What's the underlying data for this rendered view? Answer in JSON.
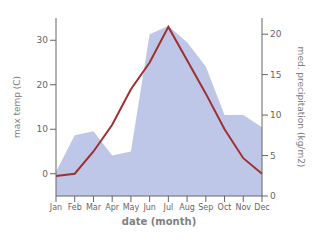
{
  "chart_data": {
    "type": "line",
    "x_label": "date (month)",
    "y_label": "max temp (C)",
    "y2_label": "med. precipitation (kg/m2)",
    "categories": [
      "Jan",
      "Feb",
      "Mar",
      "Apr",
      "May",
      "Jun",
      "Jul",
      "Aug",
      "Sep",
      "Oct",
      "Nov",
      "Dec"
    ],
    "series": [
      {
        "type": "area",
        "axis": "y2",
        "color": "#aab4e0",
        "values": [
          3.0,
          7.5,
          8.0,
          5.0,
          5.5,
          20.0,
          21.0,
          19.0,
          16.0,
          10.0,
          10.0,
          8.5
        ]
      },
      {
        "type": "line",
        "axis": "y",
        "color": "#a03030",
        "values": [
          -0.5,
          0.0,
          5.0,
          11.0,
          19.0,
          25.0,
          33.0,
          25.5,
          18.0,
          10.0,
          3.5,
          0.0
        ]
      }
    ],
    "ylim": [
      -5,
      35
    ],
    "yticks": [
      0,
      10,
      20,
      30
    ],
    "y2lim": [
      0,
      22.0
    ],
    "y2ticks": [
      0,
      5,
      10,
      15,
      20
    ],
    "grid": false
  }
}
